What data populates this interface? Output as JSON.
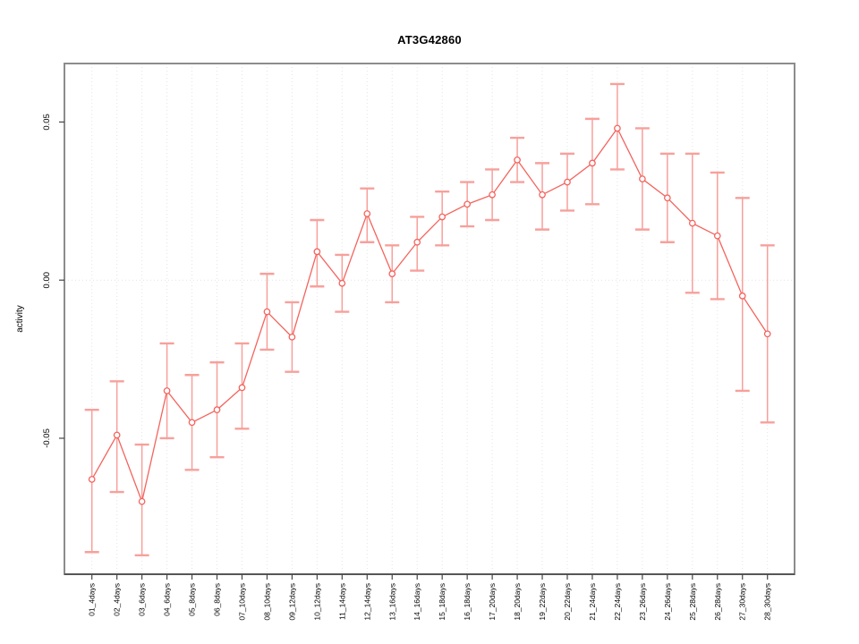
{
  "figure": {
    "background": "#ffffff",
    "accent_color": "#f4635d",
    "errorbar_color": "#f7a09b",
    "grid_color": "#e4e4e4",
    "box_color": "#8c8c8c",
    "axis_color": "#454545",
    "text_color": "#000000"
  },
  "chart_data": {
    "type": "line",
    "title": "AT3G42860",
    "xlabel": "",
    "ylabel": "activity",
    "marker": "open-circle",
    "error_bars": true,
    "legend": "none",
    "grid": "vertical dotted line at each category; horizontal dotted line at y=0",
    "ylim": [
      -0.093,
      0.0685
    ],
    "yticks": [
      -0.05,
      0,
      0.05
    ],
    "ytick_labels": [
      "-0.05",
      "0.00",
      "0.05"
    ],
    "categories": [
      "01_4days",
      "02_4days",
      "03_6days",
      "04_6days",
      "05_8days",
      "06_8days",
      "07_10days",
      "08_10days",
      "09_12days",
      "10_12days",
      "11_14days",
      "12_14days",
      "13_16days",
      "14_16days",
      "15_18days",
      "16_18days",
      "17_20days",
      "18_20days",
      "19_22days",
      "20_22days",
      "21_24days",
      "22_24days",
      "23_26days",
      "24_26days",
      "25_28days",
      "26_28days",
      "27_30days",
      "28_30days"
    ],
    "series": [
      {
        "name": "mean",
        "values": [
          -0.063,
          -0.049,
          -0.07,
          -0.035,
          -0.045,
          -0.041,
          -0.034,
          -0.01,
          -0.018,
          0.009,
          -0.001,
          0.021,
          0.002,
          0.012,
          0.02,
          0.024,
          0.027,
          0.038,
          0.027,
          0.031,
          0.037,
          0.048,
          0.032,
          0.026,
          0.018,
          0.014,
          -0.005,
          -0.017
        ]
      },
      {
        "name": "error_upper",
        "values": [
          -0.041,
          -0.032,
          -0.052,
          -0.02,
          -0.03,
          -0.026,
          -0.02,
          0.002,
          -0.007,
          0.019,
          0.008,
          0.029,
          0.011,
          0.02,
          0.028,
          0.031,
          0.035,
          0.045,
          0.037,
          0.04,
          0.051,
          0.062,
          0.048,
          0.04,
          0.04,
          0.034,
          0.026,
          0.011
        ]
      },
      {
        "name": "error_lower",
        "values": [
          -0.086,
          -0.067,
          -0.087,
          -0.05,
          -0.06,
          -0.056,
          -0.047,
          -0.022,
          -0.029,
          -0.002,
          -0.01,
          0.012,
          -0.007,
          0.003,
          0.011,
          0.017,
          0.019,
          0.031,
          0.016,
          0.022,
          0.024,
          0.035,
          0.016,
          0.012,
          -0.004,
          -0.006,
          -0.035,
          -0.045
        ]
      }
    ]
  }
}
